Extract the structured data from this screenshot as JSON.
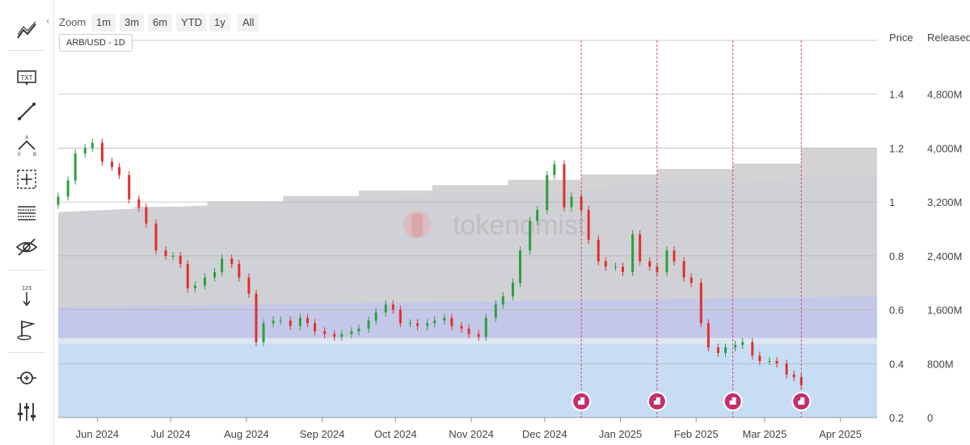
{
  "toolbar": {
    "tools": [
      "line-chart-icon",
      "text-icon",
      "trendline-icon",
      "fibonacci-icon",
      "crosshair-icon",
      "grid-lines-icon",
      "hide-icon",
      "measure-icon",
      "flag-icon",
      "zoom-fit-icon",
      "adjust-icon"
    ]
  },
  "zoom": {
    "label": "Zoom",
    "buttons": [
      "1m",
      "3m",
      "6m",
      "YTD",
      "1y",
      "All"
    ]
  },
  "pair_label": "ARB/USD - 1D",
  "columns": {
    "price": "Price",
    "released": "Released"
  },
  "watermark": "tokenomist",
  "chart_data": {
    "type": "candlestick+area",
    "x_labels": [
      "Jun 2024",
      "Jul 2024",
      "Aug 2024",
      "Sep 2024",
      "Oct 2024",
      "Nov 2024",
      "Dec 2024",
      "Jan 2025",
      "Feb 2025",
      "Mar 2025",
      "Apr 2025"
    ],
    "x_label_dates": [
      "2024-06-01",
      "2024-07-01",
      "2024-08-01",
      "2024-09-01",
      "2024-10-01",
      "2024-11-01",
      "2024-12-01",
      "2025-01-01",
      "2025-02-01",
      "2025-03-01",
      "2025-04-01"
    ],
    "x_range": [
      "2024-05-16",
      "2025-04-16"
    ],
    "price_axis": {
      "ticks": [
        "0.2",
        "0.4",
        "0.6",
        "0.8",
        "1",
        "1.2",
        "1.4"
      ],
      "range": [
        0.2,
        1.6
      ]
    },
    "released_axis": {
      "ticks": [
        "0",
        "800M",
        "1,600M",
        "2,400M",
        "3,200M",
        "4,000M",
        "4,800M"
      ],
      "range": [
        0,
        5600
      ]
    },
    "unlock_events": [
      "2024-12-16",
      "2025-01-16",
      "2025-02-16",
      "2025-03-16"
    ],
    "released_total_steps": [
      {
        "date": "2024-05-16",
        "value": 3050
      },
      {
        "date": "2024-06-16",
        "value": 3130
      },
      {
        "date": "2024-07-16",
        "value": 3210
      },
      {
        "date": "2024-08-16",
        "value": 3290
      },
      {
        "date": "2024-09-16",
        "value": 3370
      },
      {
        "date": "2024-10-16",
        "value": 3450
      },
      {
        "date": "2024-11-16",
        "value": 3530
      },
      {
        "date": "2024-12-16",
        "value": 3610
      },
      {
        "date": "2025-01-16",
        "value": 3690
      },
      {
        "date": "2025-02-16",
        "value": 3770
      },
      {
        "date": "2025-03-16",
        "value": 4000
      },
      {
        "date": "2025-04-16",
        "value": 4000
      }
    ],
    "released_bands": [
      {
        "name": "",
        "color": "#c6ddf4",
        "points": [
          [
            "2024-05-16",
            1090
          ],
          [
            "2025-04-16",
            1090
          ]
        ]
      },
      {
        "name": "",
        "color": "#dce7f2",
        "points": [
          [
            "2024-05-16",
            1180
          ],
          [
            "2025-04-16",
            1180
          ]
        ]
      },
      {
        "name": "",
        "color": "#c4c8e8",
        "points": [
          [
            "2024-05-16",
            1640
          ],
          [
            "2025-04-16",
            1800
          ]
        ]
      },
      {
        "name": "",
        "color": "#cfd1d4",
        "points": [
          [
            "2024-05-16",
            3050
          ],
          [
            "2025-04-16",
            3600
          ]
        ]
      }
    ],
    "price_candles": [
      {
        "date": "2024-05-16",
        "close": 1.02
      },
      {
        "date": "2024-05-20",
        "close": 1.08
      },
      {
        "date": "2024-05-23",
        "close": 1.18
      },
      {
        "date": "2024-05-27",
        "close": 1.2
      },
      {
        "date": "2024-05-30",
        "close": 1.22
      },
      {
        "date": "2024-06-03",
        "close": 1.15
      },
      {
        "date": "2024-06-07",
        "close": 1.13
      },
      {
        "date": "2024-06-10",
        "close": 1.1
      },
      {
        "date": "2024-06-14",
        "close": 1.01
      },
      {
        "date": "2024-06-18",
        "close": 0.98
      },
      {
        "date": "2024-06-21",
        "close": 0.92
      },
      {
        "date": "2024-06-25",
        "close": 0.82
      },
      {
        "date": "2024-06-29",
        "close": 0.8
      },
      {
        "date": "2024-07-02",
        "close": 0.8
      },
      {
        "date": "2024-07-05",
        "close": 0.77
      },
      {
        "date": "2024-07-08",
        "close": 0.68
      },
      {
        "date": "2024-07-11",
        "close": 0.69
      },
      {
        "date": "2024-07-15",
        "close": 0.72
      },
      {
        "date": "2024-07-19",
        "close": 0.74
      },
      {
        "date": "2024-07-22",
        "close": 0.79
      },
      {
        "date": "2024-07-26",
        "close": 0.77
      },
      {
        "date": "2024-07-29",
        "close": 0.72
      },
      {
        "date": "2024-08-02",
        "close": 0.66
      },
      {
        "date": "2024-08-05",
        "close": 0.48
      },
      {
        "date": "2024-08-08",
        "close": 0.55
      },
      {
        "date": "2024-08-12",
        "close": 0.56
      },
      {
        "date": "2024-08-15",
        "close": 0.56
      },
      {
        "date": "2024-08-19",
        "close": 0.54
      },
      {
        "date": "2024-08-23",
        "close": 0.57
      },
      {
        "date": "2024-08-26",
        "close": 0.55
      },
      {
        "date": "2024-08-29",
        "close": 0.52
      },
      {
        "date": "2024-09-02",
        "close": 0.51
      },
      {
        "date": "2024-09-06",
        "close": 0.5
      },
      {
        "date": "2024-09-09",
        "close": 0.51
      },
      {
        "date": "2024-09-13",
        "close": 0.52
      },
      {
        "date": "2024-09-16",
        "close": 0.53
      },
      {
        "date": "2024-09-20",
        "close": 0.56
      },
      {
        "date": "2024-09-23",
        "close": 0.59
      },
      {
        "date": "2024-09-27",
        "close": 0.62
      },
      {
        "date": "2024-09-30",
        "close": 0.6
      },
      {
        "date": "2024-10-03",
        "close": 0.55
      },
      {
        "date": "2024-10-07",
        "close": 0.55
      },
      {
        "date": "2024-10-10",
        "close": 0.54
      },
      {
        "date": "2024-10-14",
        "close": 0.55
      },
      {
        "date": "2024-10-17",
        "close": 0.56
      },
      {
        "date": "2024-10-21",
        "close": 0.57
      },
      {
        "date": "2024-10-24",
        "close": 0.54
      },
      {
        "date": "2024-10-28",
        "close": 0.53
      },
      {
        "date": "2024-10-31",
        "close": 0.51
      },
      {
        "date": "2024-11-04",
        "close": 0.5
      },
      {
        "date": "2024-11-07",
        "close": 0.57
      },
      {
        "date": "2024-11-11",
        "close": 0.62
      },
      {
        "date": "2024-11-14",
        "close": 0.65
      },
      {
        "date": "2024-11-18",
        "close": 0.7
      },
      {
        "date": "2024-11-21",
        "close": 0.82
      },
      {
        "date": "2024-11-25",
        "close": 0.93
      },
      {
        "date": "2024-11-28",
        "close": 0.97
      },
      {
        "date": "2024-12-02",
        "close": 1.1
      },
      {
        "date": "2024-12-05",
        "close": 1.14
      },
      {
        "date": "2024-12-09",
        "close": 0.98
      },
      {
        "date": "2024-12-12",
        "close": 1.02
      },
      {
        "date": "2024-12-16",
        "close": 0.97
      },
      {
        "date": "2024-12-19",
        "close": 0.86
      },
      {
        "date": "2024-12-23",
        "close": 0.78
      },
      {
        "date": "2024-12-26",
        "close": 0.76
      },
      {
        "date": "2024-12-30",
        "close": 0.76
      },
      {
        "date": "2025-01-02",
        "close": 0.74
      },
      {
        "date": "2025-01-06",
        "close": 0.88
      },
      {
        "date": "2025-01-09",
        "close": 0.78
      },
      {
        "date": "2025-01-13",
        "close": 0.76
      },
      {
        "date": "2025-01-16",
        "close": 0.74
      },
      {
        "date": "2025-01-20",
        "close": 0.82
      },
      {
        "date": "2025-01-23",
        "close": 0.78
      },
      {
        "date": "2025-01-27",
        "close": 0.72
      },
      {
        "date": "2025-01-30",
        "close": 0.7
      },
      {
        "date": "2025-02-03",
        "close": 0.55
      },
      {
        "date": "2025-02-06",
        "close": 0.46
      },
      {
        "date": "2025-02-10",
        "close": 0.44
      },
      {
        "date": "2025-02-13",
        "close": 0.46
      },
      {
        "date": "2025-02-17",
        "close": 0.47
      },
      {
        "date": "2025-02-20",
        "close": 0.48
      },
      {
        "date": "2025-02-24",
        "close": 0.43
      },
      {
        "date": "2025-02-27",
        "close": 0.41
      },
      {
        "date": "2025-03-03",
        "close": 0.41
      },
      {
        "date": "2025-03-06",
        "close": 0.4
      },
      {
        "date": "2025-03-10",
        "close": 0.36
      },
      {
        "date": "2025-03-13",
        "close": 0.35
      },
      {
        "date": "2025-03-16",
        "close": 0.32
      }
    ]
  }
}
